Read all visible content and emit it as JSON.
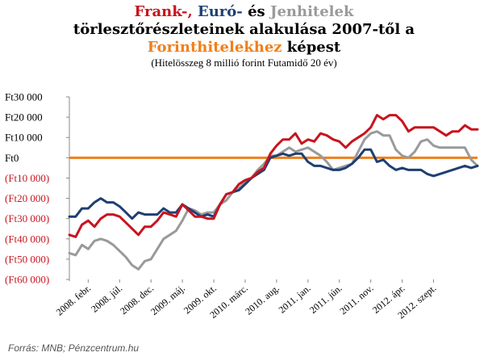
{
  "title": {
    "frank": "Frank-,",
    "euro": "Euró-",
    "es": "és",
    "jen": "Jenhitelek",
    "line2": "törlesztőrészleteinek  alakulása 2007-től a",
    "forint": "Forinthitelekhez",
    "line3_rest": "képest",
    "subtitle": "(Hitelösszeg 8 millió forint Futamidő 20 év)"
  },
  "source": "Forrás: MNB; Pénzcentrum.hu",
  "colors": {
    "frank": "#c8141e",
    "euro": "#1f3f73",
    "jen": "#9a9a9a",
    "forint": "#f07f1a",
    "positive_ticks": "#000000",
    "negative_ticks": "#c8141e"
  },
  "chart_data": {
    "type": "line",
    "title": "Frank-, Euró- és Jenhitelek törlesztőrészleteinek alakulása 2007-től a Forinthitelekhez képest",
    "ylim": [
      -60000,
      30000
    ],
    "yticks": [
      {
        "value": 30000,
        "label": "Ft30 000"
      },
      {
        "value": 20000,
        "label": "Ft20 000"
      },
      {
        "value": 10000,
        "label": "Ft10 000"
      },
      {
        "value": 0,
        "label": "Ft0"
      },
      {
        "value": -10000,
        "label": "(Ft10 000)"
      },
      {
        "value": -20000,
        "label": "(Ft20 000)"
      },
      {
        "value": -30000,
        "label": "(Ft30 000)"
      },
      {
        "value": -40000,
        "label": "(Ft40 000)"
      },
      {
        "value": -50000,
        "label": "(Ft50 000)"
      },
      {
        "value": -60000,
        "label": "(Ft60 000)"
      }
    ],
    "x_tick_labels": [
      {
        "index": 3,
        "label": "2008. febr."
      },
      {
        "index": 8,
        "label": "2008. júl."
      },
      {
        "index": 13,
        "label": "2008. dec."
      },
      {
        "index": 18,
        "label": "2009. máj."
      },
      {
        "index": 23,
        "label": "2009. okt."
      },
      {
        "index": 28,
        "label": "2010. márc."
      },
      {
        "index": 33,
        "label": "2010. aug."
      },
      {
        "index": 38,
        "label": "2011. jan."
      },
      {
        "index": 43,
        "label": "2011. jún."
      },
      {
        "index": 48,
        "label": "2011. nov."
      },
      {
        "index": 53,
        "label": "2012. ápr."
      },
      {
        "index": 58,
        "label": "2012. szept."
      }
    ],
    "series": [
      {
        "key": "frank",
        "values": [
          -38000,
          -39000,
          -33000,
          -31000,
          -34000,
          -30000,
          -28000,
          -28000,
          -29000,
          -32000,
          -35000,
          -38000,
          -34000,
          -34000,
          -31000,
          -27000,
          -28000,
          -29000,
          -23000,
          -26000,
          -29000,
          -29000,
          -30000,
          -30000,
          -23000,
          -18000,
          -17000,
          -13000,
          -11000,
          -10000,
          -7000,
          -5000,
          2000,
          6000,
          9000,
          9000,
          12000,
          7000,
          9000,
          8000,
          12000,
          11000,
          9000,
          8000,
          5000,
          8000,
          10000,
          12000,
          15000,
          21000,
          19000,
          21000,
          21000,
          18000,
          13000,
          15000,
          15000,
          15000,
          15000,
          13000,
          11000,
          13000,
          13000,
          16000,
          14000,
          14000
        ]
      },
      {
        "key": "euro",
        "values": [
          -29000,
          -29000,
          -25000,
          -25000,
          -22000,
          -20000,
          -22000,
          -22000,
          -24000,
          -27000,
          -30000,
          -27000,
          -28000,
          -28000,
          -28000,
          -25000,
          -27000,
          -27000,
          -23000,
          -25000,
          -27000,
          -29000,
          -28000,
          -29000,
          -23000,
          -18000,
          -17000,
          -16000,
          -13000,
          -10000,
          -8000,
          -6000,
          0,
          1000,
          2000,
          1000,
          2000,
          2000,
          -2000,
          -4000,
          -4000,
          -5000,
          -6000,
          -6000,
          -5000,
          -3000,
          0,
          4000,
          4000,
          -2000,
          -1000,
          -4000,
          -6000,
          -5000,
          -6000,
          -6000,
          -6000,
          -8000,
          -9000,
          -8000,
          -7000,
          -6000,
          -5000,
          -4000,
          -5000,
          -4000
        ]
      },
      {
        "key": "jen",
        "values": [
          -47000,
          -48000,
          -43000,
          -45000,
          -41000,
          -40000,
          -41000,
          -43000,
          -46000,
          -49000,
          -53000,
          -55000,
          -51000,
          -50000,
          -45000,
          -40000,
          -38000,
          -36000,
          -31000,
          -25000,
          -26000,
          -28000,
          -27000,
          -27000,
          -23000,
          -21000,
          -17000,
          -15000,
          -12000,
          -10000,
          -6000,
          -3000,
          1000,
          1000,
          3000,
          5000,
          3000,
          4000,
          5000,
          3000,
          1000,
          -2000,
          -6000,
          -5000,
          -4000,
          -3000,
          3000,
          9000,
          12000,
          13000,
          11000,
          11000,
          4000,
          1000,
          0,
          3000,
          8000,
          9000,
          6000,
          5000,
          5000,
          5000,
          5000,
          5000,
          -1000,
          -4000
        ]
      },
      {
        "key": "forint",
        "values": [
          0,
          0
        ]
      }
    ]
  }
}
